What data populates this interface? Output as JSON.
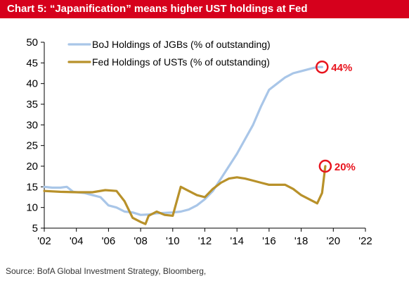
{
  "title": "Chart 5: “Japanification” means higher UST holdings at Fed",
  "source": "Source: BofA Global Investment Strategy, Bloomberg,",
  "chart_data": {
    "type": "line",
    "xlabel": "",
    "ylabel": "",
    "xlim": [
      2002,
      2022
    ],
    "ylim": [
      5,
      50
    ],
    "x_tick_values": [
      2002,
      2004,
      2006,
      2008,
      2010,
      2012,
      2014,
      2016,
      2018,
      2020,
      2022
    ],
    "x_tick_labels": [
      "'02",
      "'04",
      "'06",
      "'08",
      "'10",
      "'12",
      "'14",
      "'16",
      "'18",
      "'20",
      "'22"
    ],
    "y_ticks": [
      5,
      10,
      15,
      20,
      25,
      30,
      35,
      40,
      45,
      50
    ],
    "grid": false,
    "legend_position": "top-left",
    "series": [
      {
        "name": "BoJ Holdings of JGBs (% of outstanding)",
        "color": "#a9c6e8",
        "x": [
          2002,
          2002.5,
          2003,
          2003.4,
          2003.8,
          2004.5,
          2005,
          2005.5,
          2006,
          2006.5,
          2007,
          2007.5,
          2008,
          2008.5,
          2009,
          2009.5,
          2010,
          2010.5,
          2011,
          2011.5,
          2012,
          2012.5,
          2013,
          2013.5,
          2014,
          2014.5,
          2015,
          2015.5,
          2016,
          2016.5,
          2017,
          2017.5,
          2018,
          2018.5,
          2019,
          2019.3
        ],
        "y": [
          15,
          14.8,
          14.8,
          15,
          13.8,
          13.5,
          13,
          12.5,
          10.5,
          10,
          9,
          8.8,
          8.2,
          8.3,
          8.6,
          8.7,
          8.8,
          9,
          9.5,
          10.5,
          12,
          14,
          17,
          20,
          23,
          26.5,
          30,
          34.5,
          38.5,
          40,
          41.5,
          42.5,
          43,
          43.5,
          44,
          44
        ]
      },
      {
        "name": "Fed Holdings of USTs (% of outstanding)",
        "color": "#b8912a",
        "x": [
          2002,
          2003,
          2004,
          2005,
          2005.8,
          2006.5,
          2007,
          2007.5,
          2008,
          2008.3,
          2008.5,
          2009,
          2009.5,
          2010,
          2010.5,
          2011,
          2011.5,
          2012,
          2012.5,
          2013,
          2013.5,
          2014,
          2014.5,
          2015,
          2015.5,
          2016,
          2016.5,
          2017,
          2017.5,
          2018,
          2018.5,
          2019,
          2019.3,
          2019.5
        ],
        "y": [
          14,
          13.8,
          13.7,
          13.7,
          14.2,
          14,
          11.5,
          7.5,
          6.5,
          6,
          8,
          9,
          8.2,
          8,
          15,
          14,
          13,
          12.5,
          14.5,
          16,
          17,
          17.3,
          17,
          16.5,
          16,
          15.5,
          15.5,
          15.5,
          14.5,
          13,
          12,
          11,
          13.5,
          20
        ]
      }
    ],
    "annotations": [
      {
        "label": "44%",
        "series": "BoJ Holdings of JGBs (% of outstanding)",
        "x": 2019.3,
        "y": 44,
        "color": "#e8141e"
      },
      {
        "label": "20%",
        "series": "Fed Holdings of USTs (% of outstanding)",
        "x": 2019.5,
        "y": 20,
        "color": "#e8141e"
      }
    ]
  }
}
